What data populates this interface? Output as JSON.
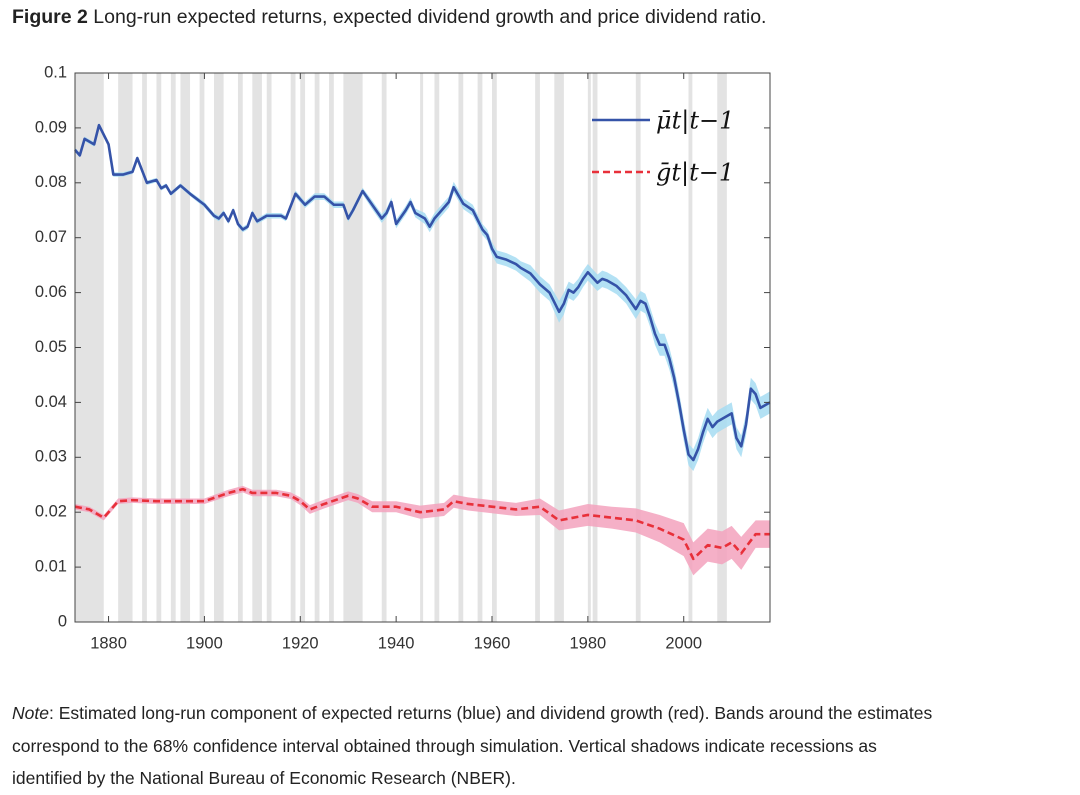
{
  "figure_label": "Figure 2",
  "title": "Long-run expected returns, expected dividend growth and price dividend ratio.",
  "note": {
    "label": "Note",
    "lines": [
      ": Estimated long-run component of expected returns (blue) and dividend growth (red).  Bands around the estimates",
      "correspond to the 68% confidence interval obtained through simulation. Vertical shadows indicate recessions as",
      "identified by the National Bureau of Economic Research (NBER)."
    ]
  },
  "chart_data": {
    "type": "line",
    "xlim": [
      1873,
      2018
    ],
    "xticks": [
      1880,
      1900,
      1920,
      1940,
      1960,
      1980,
      2000
    ],
    "ylim": [
      0,
      0.1
    ],
    "yticks": [
      0,
      0.01,
      0.02,
      0.03,
      0.04,
      0.05,
      0.06,
      0.07,
      0.08,
      0.09,
      0.1
    ],
    "legend": "upper right",
    "grid": false,
    "recession_color": "#d9d9d9",
    "recessions": [
      [
        1873,
        1879
      ],
      [
        1882,
        1885
      ],
      [
        1887,
        1888
      ],
      [
        1890,
        1891
      ],
      [
        1893,
        1894
      ],
      [
        1895,
        1897
      ],
      [
        1899,
        1900
      ],
      [
        1902,
        1904
      ],
      [
        1907,
        1908
      ],
      [
        1910,
        1912
      ],
      [
        1913,
        1914
      ],
      [
        1918,
        1919
      ],
      [
        1920,
        1921
      ],
      [
        1923,
        1924
      ],
      [
        1926,
        1927
      ],
      [
        1929,
        1933
      ],
      [
        1937,
        1938
      ],
      [
        1945,
        1945.6
      ],
      [
        1948,
        1949
      ],
      [
        1953,
        1954
      ],
      [
        1957,
        1958
      ],
      [
        1960,
        1961
      ],
      [
        1969,
        1970
      ],
      [
        1973,
        1975
      ],
      [
        1980,
        1980.6
      ],
      [
        1981,
        1982
      ],
      [
        1990,
        1991
      ],
      [
        2001,
        2001.8
      ],
      [
        2007,
        2009
      ]
    ],
    "series": [
      {
        "name": "μ̄t|t−1",
        "color": "#3553a8",
        "band_color": "#a6dcf2",
        "dash": false,
        "x": [
          1873,
          1874,
          1875,
          1877,
          1878,
          1880,
          1881,
          1883,
          1885,
          1886,
          1888,
          1890,
          1891,
          1892,
          1893,
          1895,
          1897,
          1900,
          1902,
          1903,
          1904,
          1905,
          1906,
          1907,
          1908,
          1909,
          1910,
          1911,
          1913,
          1916,
          1917,
          1919,
          1921,
          1923,
          1925,
          1927,
          1929,
          1930,
          1931,
          1933,
          1935,
          1937,
          1938,
          1939,
          1940,
          1942,
          1943,
          1944,
          1946,
          1947,
          1948,
          1951,
          1952,
          1954,
          1956,
          1958,
          1959,
          1960,
          1961,
          1963,
          1965,
          1966,
          1968,
          1970,
          1972,
          1974,
          1975,
          1976,
          1977,
          1978,
          1979,
          1980,
          1982,
          1983,
          1984,
          1986,
          1988,
          1990,
          1991,
          1992,
          1993,
          1994,
          1995,
          1996,
          1997,
          1998,
          1999,
          2000,
          2001,
          2002,
          2003,
          2004,
          2005,
          2006,
          2007,
          2009,
          2010,
          2011,
          2012,
          2013,
          2014,
          2015,
          2016,
          2018
        ],
        "values": [
          0.086,
          0.085,
          0.088,
          0.087,
          0.0905,
          0.087,
          0.0815,
          0.0815,
          0.082,
          0.0845,
          0.08,
          0.0805,
          0.079,
          0.0795,
          0.078,
          0.0795,
          0.078,
          0.076,
          0.074,
          0.0735,
          0.0745,
          0.073,
          0.075,
          0.0725,
          0.0715,
          0.072,
          0.0745,
          0.073,
          0.074,
          0.074,
          0.0735,
          0.078,
          0.076,
          0.0775,
          0.0775,
          0.076,
          0.076,
          0.0735,
          0.075,
          0.0785,
          0.076,
          0.0735,
          0.0745,
          0.0765,
          0.0725,
          0.075,
          0.0765,
          0.0745,
          0.0735,
          0.072,
          0.0735,
          0.0765,
          0.0792,
          0.0762,
          0.075,
          0.0715,
          0.0705,
          0.068,
          0.0665,
          0.066,
          0.0652,
          0.0645,
          0.0635,
          0.0615,
          0.06,
          0.0565,
          0.058,
          0.0605,
          0.06,
          0.061,
          0.0625,
          0.0637,
          0.0618,
          0.0625,
          0.0622,
          0.0612,
          0.0595,
          0.057,
          0.0585,
          0.058,
          0.0555,
          0.0525,
          0.0505,
          0.0505,
          0.048,
          0.0445,
          0.04,
          0.035,
          0.0305,
          0.0295,
          0.0315,
          0.0345,
          0.037,
          0.0355,
          0.0365,
          0.0375,
          0.038,
          0.0335,
          0.032,
          0.036,
          0.0425,
          0.0415,
          0.039,
          0.04
        ],
        "errors": [
          0.0004,
          0.0004,
          0.0004,
          0.0004,
          0.0004,
          0.0004,
          0.0004,
          0.0004,
          0.0004,
          0.0004,
          0.0004,
          0.0004,
          0.0004,
          0.0004,
          0.0004,
          0.0004,
          0.0004,
          0.0005,
          0.0005,
          0.0005,
          0.0005,
          0.0005,
          0.0005,
          0.0005,
          0.0005,
          0.0005,
          0.0005,
          0.0005,
          0.0005,
          0.0005,
          0.0005,
          0.0006,
          0.0006,
          0.0006,
          0.0006,
          0.0006,
          0.0006,
          0.0006,
          0.0006,
          0.0006,
          0.0008,
          0.0008,
          0.0008,
          0.0008,
          0.0008,
          0.0008,
          0.0008,
          0.0008,
          0.001,
          0.001,
          0.001,
          0.001,
          0.001,
          0.001,
          0.001,
          0.001,
          0.001,
          0.0012,
          0.0012,
          0.0012,
          0.0012,
          0.0012,
          0.0015,
          0.0015,
          0.0015,
          0.002,
          0.002,
          0.0015,
          0.0015,
          0.0015,
          0.0015,
          0.0015,
          0.0015,
          0.0015,
          0.0015,
          0.0015,
          0.0015,
          0.0018,
          0.0018,
          0.0018,
          0.0018,
          0.002,
          0.002,
          0.002,
          0.002,
          0.002,
          0.002,
          0.002,
          0.002,
          0.002,
          0.002,
          0.002,
          0.002,
          0.002,
          0.002,
          0.002,
          0.002,
          0.002,
          0.002,
          0.002,
          0.002,
          0.002,
          0.002,
          0.002
        ]
      },
      {
        "name": "ḡt|t−1",
        "color": "#e8303a",
        "band_color": "#f3a2bd",
        "dash": true,
        "x": [
          1873,
          1876,
          1878,
          1879,
          1882,
          1885,
          1890,
          1895,
          1900,
          1905,
          1908,
          1910,
          1915,
          1918,
          1920,
          1922,
          1925,
          1930,
          1932,
          1935,
          1940,
          1945,
          1950,
          1952,
          1955,
          1960,
          1965,
          1970,
          1974,
          1980,
          1985,
          1990,
          1995,
          2000,
          2002,
          2005,
          2008,
          2010,
          2012,
          2015,
          2018
        ],
        "values": [
          0.021,
          0.0205,
          0.0195,
          0.019,
          0.022,
          0.0222,
          0.022,
          0.022,
          0.022,
          0.0235,
          0.0242,
          0.0235,
          0.0235,
          0.023,
          0.022,
          0.0205,
          0.0215,
          0.023,
          0.0225,
          0.021,
          0.021,
          0.02,
          0.0205,
          0.022,
          0.0215,
          0.021,
          0.0205,
          0.021,
          0.0185,
          0.0195,
          0.019,
          0.0185,
          0.017,
          0.015,
          0.0115,
          0.014,
          0.0135,
          0.0145,
          0.0125,
          0.016,
          0.016
        ],
        "errors": [
          0.0005,
          0.0005,
          0.0005,
          0.0005,
          0.0005,
          0.0005,
          0.0005,
          0.0005,
          0.0005,
          0.0006,
          0.0006,
          0.0006,
          0.0006,
          0.0006,
          0.0007,
          0.0008,
          0.0008,
          0.0008,
          0.0008,
          0.001,
          0.001,
          0.0012,
          0.0012,
          0.0012,
          0.0012,
          0.0012,
          0.0012,
          0.0015,
          0.0018,
          0.002,
          0.002,
          0.0022,
          0.0025,
          0.003,
          0.003,
          0.003,
          0.003,
          0.003,
          0.003,
          0.0025,
          0.0025
        ]
      }
    ]
  }
}
